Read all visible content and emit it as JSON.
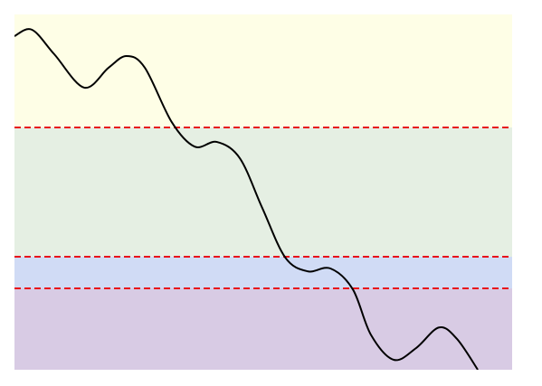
{
  "chart_data": {
    "type": "line",
    "x": [
      0,
      3.5,
      8,
      14,
      18.9,
      22.5,
      26.2,
      31.6,
      36.2,
      40.7,
      45.3,
      49.8,
      54.4,
      58.9,
      63.5,
      68,
      71.6,
      76.2,
      80.7,
      85.3,
      88.9,
      93.1
    ],
    "series": [
      {
        "color": "#000000",
        "values": [
          93.9,
          95.7,
          88.8,
          79.4,
          85.0,
          88.3,
          85.0,
          69.7,
          62.8,
          64.1,
          59.5,
          45.5,
          31.6,
          27.7,
          28.5,
          22.6,
          9.9,
          2.8,
          6.1,
          11.9,
          8.7,
          0
        ]
      }
    ],
    "xlim": [
      0,
      100
    ],
    "ylim": [
      0,
      100
    ],
    "thresholds": [
      68.2,
      31.8,
      22.9
    ],
    "threshold_color": "#e8101a",
    "band_colors": [
      "#fefee6",
      "#e5efe3",
      "#d0dbf5",
      "#d8cbe4"
    ],
    "grid": false
  }
}
